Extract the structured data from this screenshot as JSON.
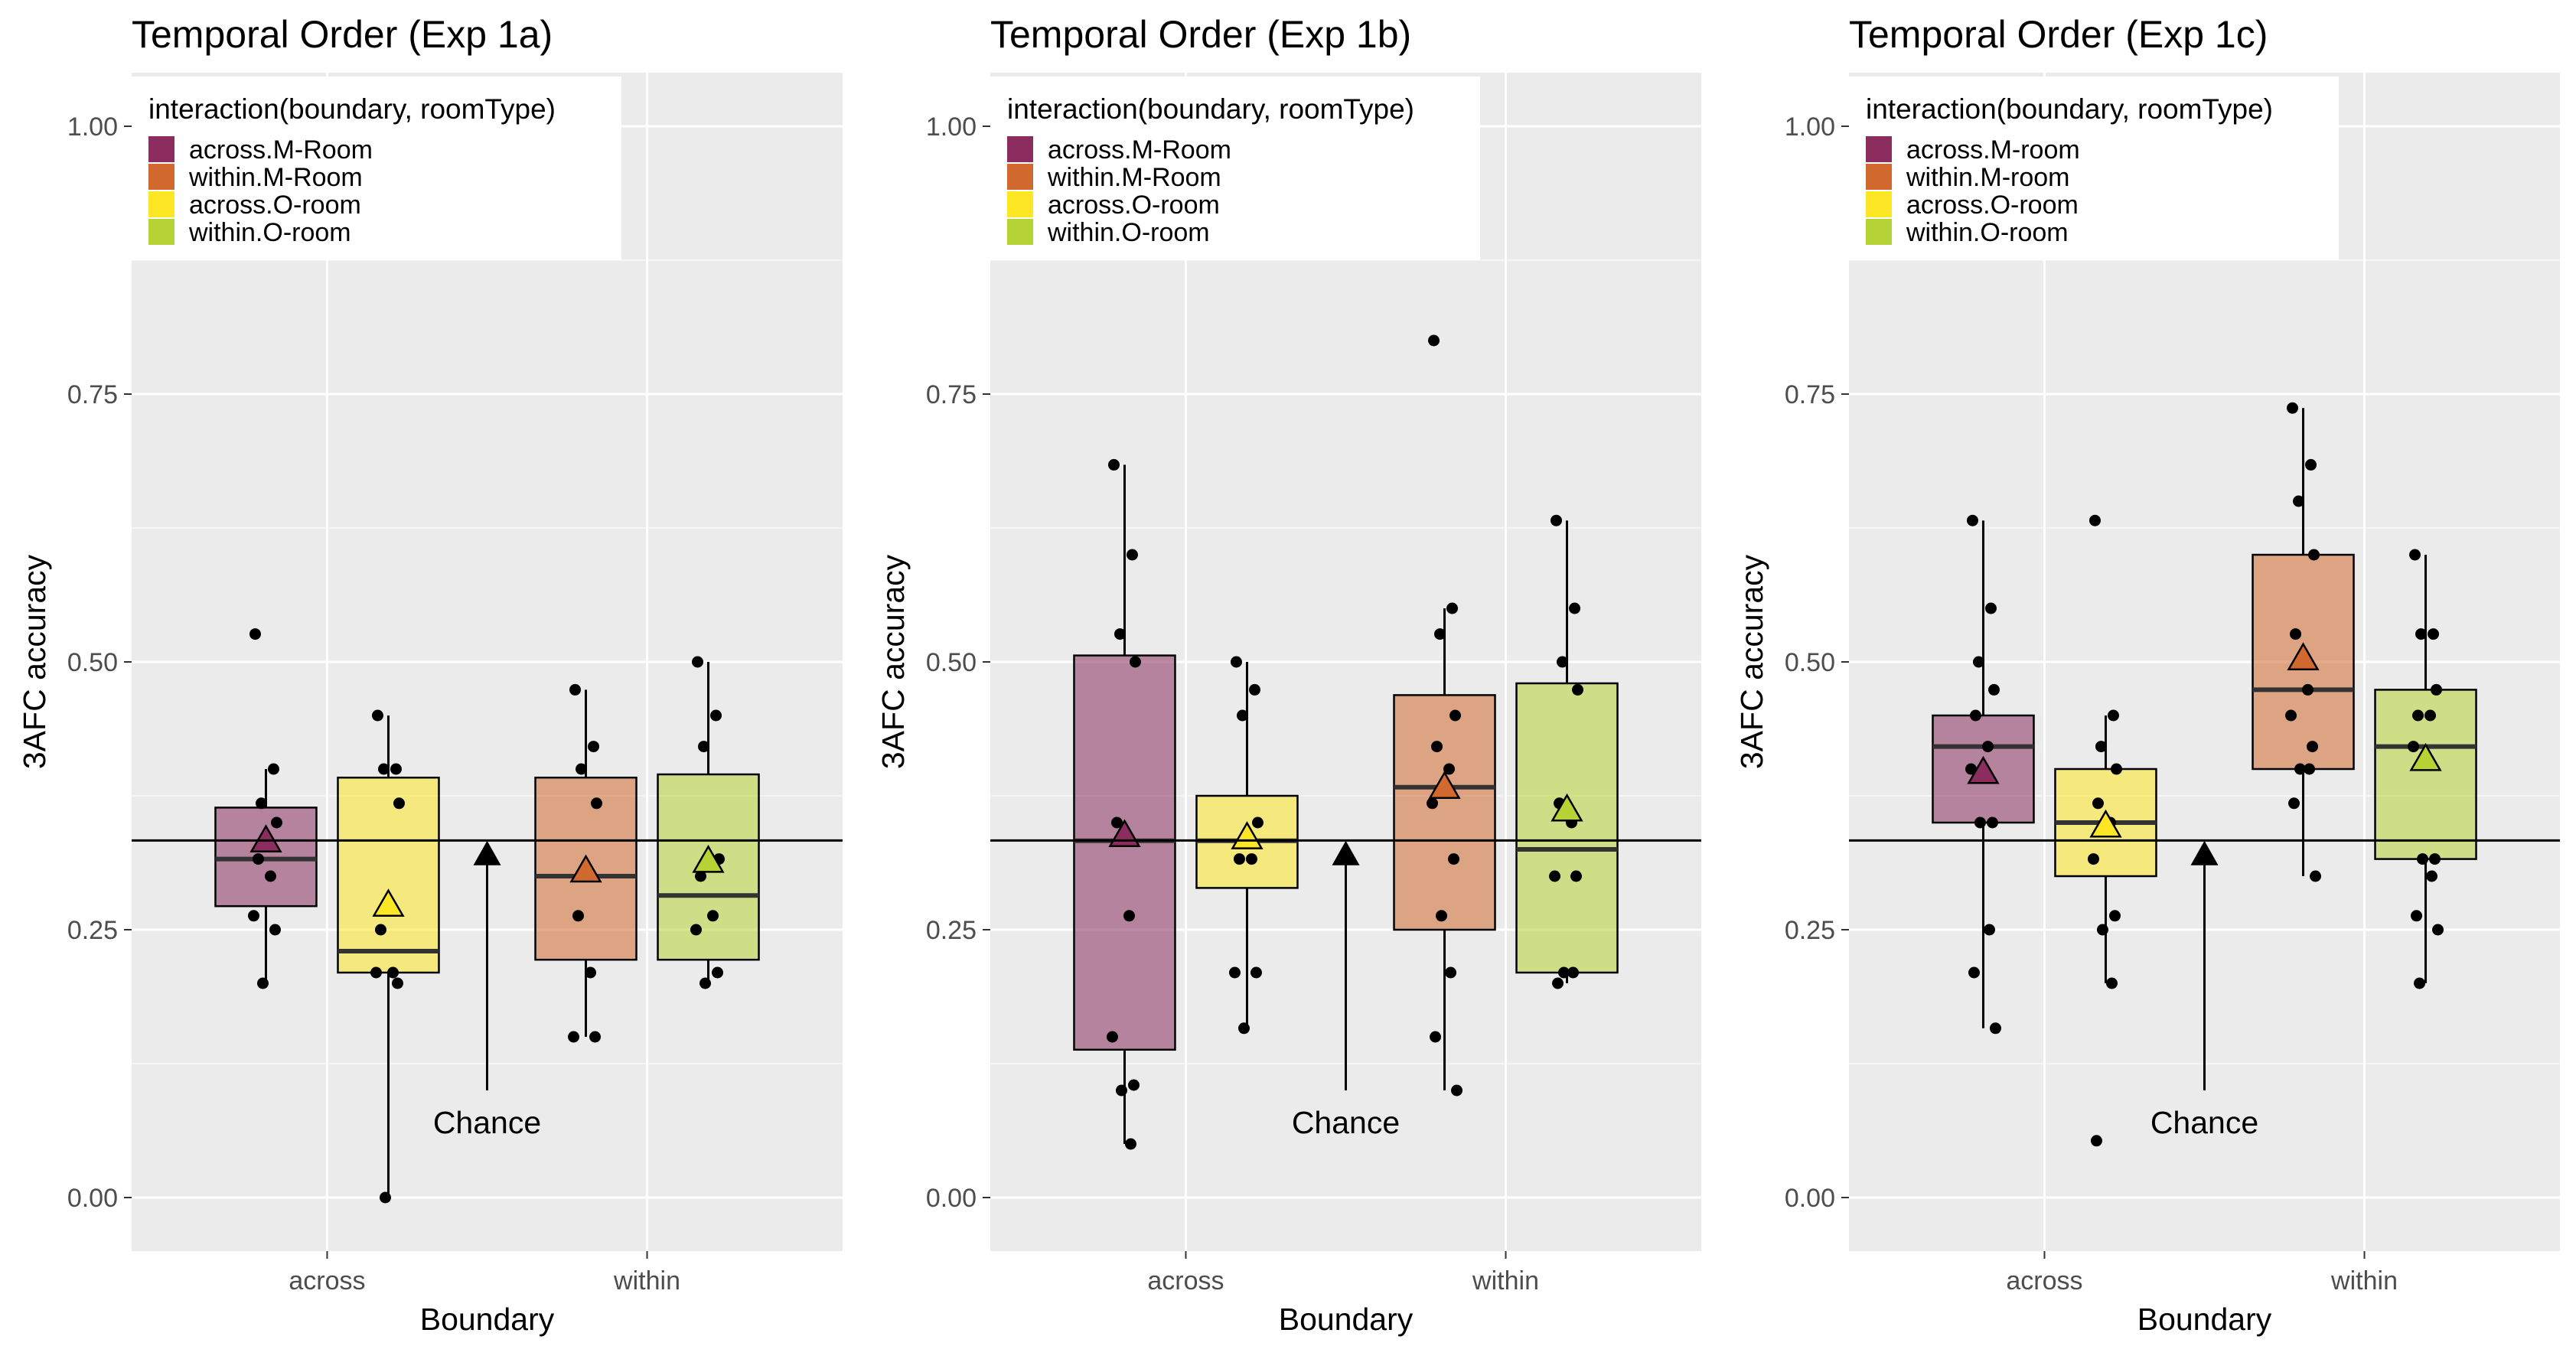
{
  "colors": {
    "panel_bg": "#EBEBEB",
    "grid": "#FFFFFF",
    "across_M": "#8B2D5F",
    "within_M": "#D2692F",
    "across_O": "#FDE725",
    "within_O": "#B5D334"
  },
  "chart_data": [
    {
      "type": "box",
      "title": "Temporal Order (Exp 1a)",
      "xlabel": "Boundary",
      "ylabel": "3AFC accuracy",
      "categories": [
        "across",
        "within"
      ],
      "y_ticks": [
        "0.00",
        "0.25",
        "0.50",
        "0.75",
        "1.00"
      ],
      "ylim": [
        -0.05,
        1.05
      ],
      "chance_line": 0.3333,
      "annotation": "Chance",
      "legend": {
        "title": "interaction(boundary, roomType)",
        "position": "top-left",
        "entries": [
          "across.M-Room",
          "within.M-Room",
          "across.O-room",
          "within.O-room"
        ]
      },
      "series": [
        {
          "category": "across",
          "room": "M",
          "q1": 0.272,
          "median": 0.316,
          "q3": 0.364,
          "lower": 0.2,
          "upper": 0.4,
          "mean": 0.333,
          "points": [
            0.526,
            0.4,
            0.368,
            0.35,
            0.316,
            0.3,
            0.263,
            0.25,
            0.2
          ]
        },
        {
          "category": "across",
          "room": "O",
          "q1": 0.21,
          "median": 0.23,
          "q3": 0.392,
          "lower": 0.0,
          "upper": 0.45,
          "mean": 0.273,
          "points": [
            0.45,
            0.4,
            0.4,
            0.368,
            0.25,
            0.21,
            0.21,
            0.2,
            0.0
          ]
        },
        {
          "category": "within",
          "room": "M",
          "q1": 0.222,
          "median": 0.3,
          "q3": 0.392,
          "lower": 0.15,
          "upper": 0.474,
          "mean": 0.305,
          "points": [
            0.474,
            0.421,
            0.4,
            0.368,
            0.263,
            0.21,
            0.15,
            0.15
          ]
        },
        {
          "category": "within",
          "room": "O",
          "q1": 0.222,
          "median": 0.282,
          "q3": 0.395,
          "lower": 0.2,
          "upper": 0.5,
          "mean": 0.314,
          "points": [
            0.5,
            0.45,
            0.421,
            0.316,
            0.3,
            0.263,
            0.25,
            0.21,
            0.2
          ]
        }
      ]
    },
    {
      "type": "box",
      "title": "Temporal Order (Exp 1b)",
      "xlabel": "Boundary",
      "ylabel": "3AFC accuracy",
      "categories": [
        "across",
        "within"
      ],
      "y_ticks": [
        "0.00",
        "0.25",
        "0.50",
        "0.75",
        "1.00"
      ],
      "ylim": [
        -0.05,
        1.05
      ],
      "chance_line": 0.3333,
      "annotation": "Chance",
      "legend": {
        "title": "interaction(boundary, roomType)",
        "position": "top-left",
        "entries": [
          "across.M-Room",
          "within.M-Room",
          "across.O-room",
          "within.O-room"
        ]
      },
      "series": [
        {
          "category": "across",
          "room": "M",
          "q1": 0.138,
          "median": 0.333,
          "q3": 0.506,
          "lower": 0.05,
          "upper": 0.684,
          "mean": 0.338,
          "points": [
            0.684,
            0.6,
            0.526,
            0.5,
            0.35,
            0.263,
            0.15,
            0.105,
            0.1,
            0.05
          ]
        },
        {
          "category": "across",
          "room": "O",
          "q1": 0.289,
          "median": 0.333,
          "q3": 0.375,
          "lower": 0.158,
          "upper": 0.5,
          "mean": 0.336,
          "points": [
            0.5,
            0.474,
            0.45,
            0.35,
            0.316,
            0.316,
            0.21,
            0.21,
            0.158
          ]
        },
        {
          "category": "within",
          "room": "M",
          "q1": 0.25,
          "median": 0.383,
          "q3": 0.469,
          "lower": 0.1,
          "upper": 0.55,
          "mean": 0.383,
          "points": [
            0.8,
            0.55,
            0.526,
            0.45,
            0.421,
            0.4,
            0.368,
            0.316,
            0.263,
            0.21,
            0.15,
            0.1
          ]
        },
        {
          "category": "within",
          "room": "O",
          "q1": 0.21,
          "median": 0.325,
          "q3": 0.48,
          "lower": 0.2,
          "upper": 0.632,
          "mean": 0.362,
          "points": [
            0.632,
            0.55,
            0.5,
            0.474,
            0.368,
            0.35,
            0.3,
            0.3,
            0.21,
            0.21,
            0.2
          ]
        }
      ]
    },
    {
      "type": "box",
      "title": "Temporal Order (Exp 1c)",
      "xlabel": "Boundary",
      "ylabel": "3AFC accuracy",
      "categories": [
        "across",
        "within"
      ],
      "y_ticks": [
        "0.00",
        "0.25",
        "0.50",
        "0.75",
        "1.00"
      ],
      "ylim": [
        -0.05,
        1.05
      ],
      "chance_line": 0.3333,
      "annotation": "Chance",
      "legend": {
        "title": "interaction(boundary, roomType)",
        "position": "top-left",
        "entries": [
          "across.M-room",
          "within.M-room",
          "across.O-room",
          "within.O-room"
        ]
      },
      "series": [
        {
          "category": "across",
          "room": "M",
          "q1": 0.35,
          "median": 0.421,
          "q3": 0.45,
          "lower": 0.158,
          "upper": 0.632,
          "mean": 0.397,
          "points": [
            0.632,
            0.55,
            0.5,
            0.474,
            0.45,
            0.421,
            0.4,
            0.35,
            0.35,
            0.25,
            0.21,
            0.158
          ]
        },
        {
          "category": "across",
          "room": "O",
          "q1": 0.3,
          "median": 0.35,
          "q3": 0.4,
          "lower": 0.2,
          "upper": 0.45,
          "mean": 0.347,
          "points": [
            0.632,
            0.45,
            0.421,
            0.4,
            0.368,
            0.35,
            0.316,
            0.263,
            0.25,
            0.2,
            0.053
          ]
        },
        {
          "category": "within",
          "room": "M",
          "q1": 0.4,
          "median": 0.474,
          "q3": 0.6,
          "lower": 0.3,
          "upper": 0.737,
          "mean": 0.503,
          "points": [
            0.737,
            0.684,
            0.65,
            0.6,
            0.526,
            0.474,
            0.45,
            0.421,
            0.4,
            0.4,
            0.368,
            0.3
          ]
        },
        {
          "category": "within",
          "room": "O",
          "q1": 0.316,
          "median": 0.421,
          "q3": 0.474,
          "lower": 0.2,
          "upper": 0.6,
          "mean": 0.409,
          "points": [
            0.6,
            0.526,
            0.526,
            0.474,
            0.45,
            0.45,
            0.421,
            0.316,
            0.316,
            0.3,
            0.263,
            0.25,
            0.2
          ]
        }
      ]
    }
  ]
}
